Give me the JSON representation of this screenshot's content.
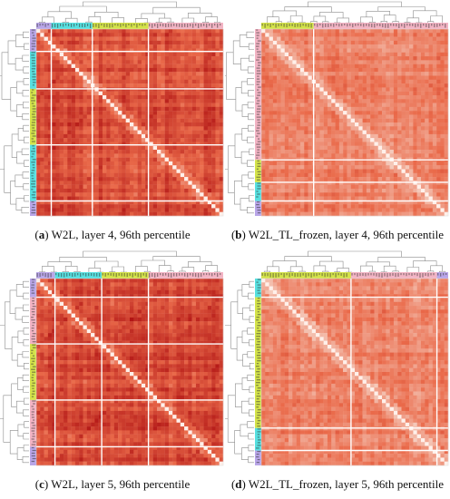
{
  "figure": {
    "palette": {
      "light": "#f6d9cd",
      "mid": "#ea6a4a",
      "dark": "#b11414",
      "diagonal": "#fff0ea",
      "separator": "#ffffff",
      "tree": "#8c8c8c"
    },
    "cluster_colors": {
      "violet": "#b9a6e8",
      "cyan": "#57e0e0",
      "yellow": "#d4e34a",
      "pink": "#f3b4c4"
    }
  },
  "chart_data": [
    {
      "type": "heatmap",
      "panel_letter": "a",
      "caption_text": "W2L, layer 4, 96th percentile",
      "color_intensity": "high",
      "cluster_bands": [
        "violet",
        "cyan",
        "yellow",
        "pink"
      ],
      "cluster_fractions": [
        0.08,
        0.22,
        0.3,
        0.4
      ],
      "row_bands": [
        "violet",
        "cyan",
        "yellow",
        "cyan",
        "violet"
      ],
      "row_fractions": [
        0.12,
        0.2,
        0.3,
        0.3,
        0.08
      ]
    },
    {
      "type": "heatmap",
      "panel_letter": "b",
      "caption_text": "W2L_TL_frozen, layer 4, 96th percentile",
      "color_intensity": "medium",
      "cluster_bands": [
        "yellow",
        "pink"
      ],
      "cluster_fractions": [
        0.28,
        0.72
      ],
      "row_bands": [
        "pink",
        "yellow",
        "cyan",
        "violet"
      ],
      "row_fractions": [
        0.7,
        0.12,
        0.1,
        0.08
      ]
    },
    {
      "type": "heatmap",
      "panel_letter": "c",
      "caption_text": "W2L, layer 5, 96th percentile",
      "color_intensity": "high",
      "cluster_bands": [
        "violet",
        "cyan",
        "yellow",
        "pink"
      ],
      "cluster_fractions": [
        0.1,
        0.25,
        0.25,
        0.4
      ],
      "row_bands": [
        "violet",
        "pink",
        "yellow",
        "pink",
        "violet"
      ],
      "row_fractions": [
        0.1,
        0.25,
        0.3,
        0.25,
        0.1
      ]
    },
    {
      "type": "heatmap",
      "panel_letter": "d",
      "caption_text": "W2L_TL_frozen, layer 5, 96th percentile",
      "color_intensity": "medium",
      "cluster_bands": [
        "yellow",
        "pink",
        "violet"
      ],
      "cluster_fractions": [
        0.48,
        0.46,
        0.06
      ],
      "row_bands": [
        "cyan",
        "yellow",
        "cyan",
        "violet"
      ],
      "row_fractions": [
        0.1,
        0.7,
        0.12,
        0.08
      ]
    }
  ]
}
